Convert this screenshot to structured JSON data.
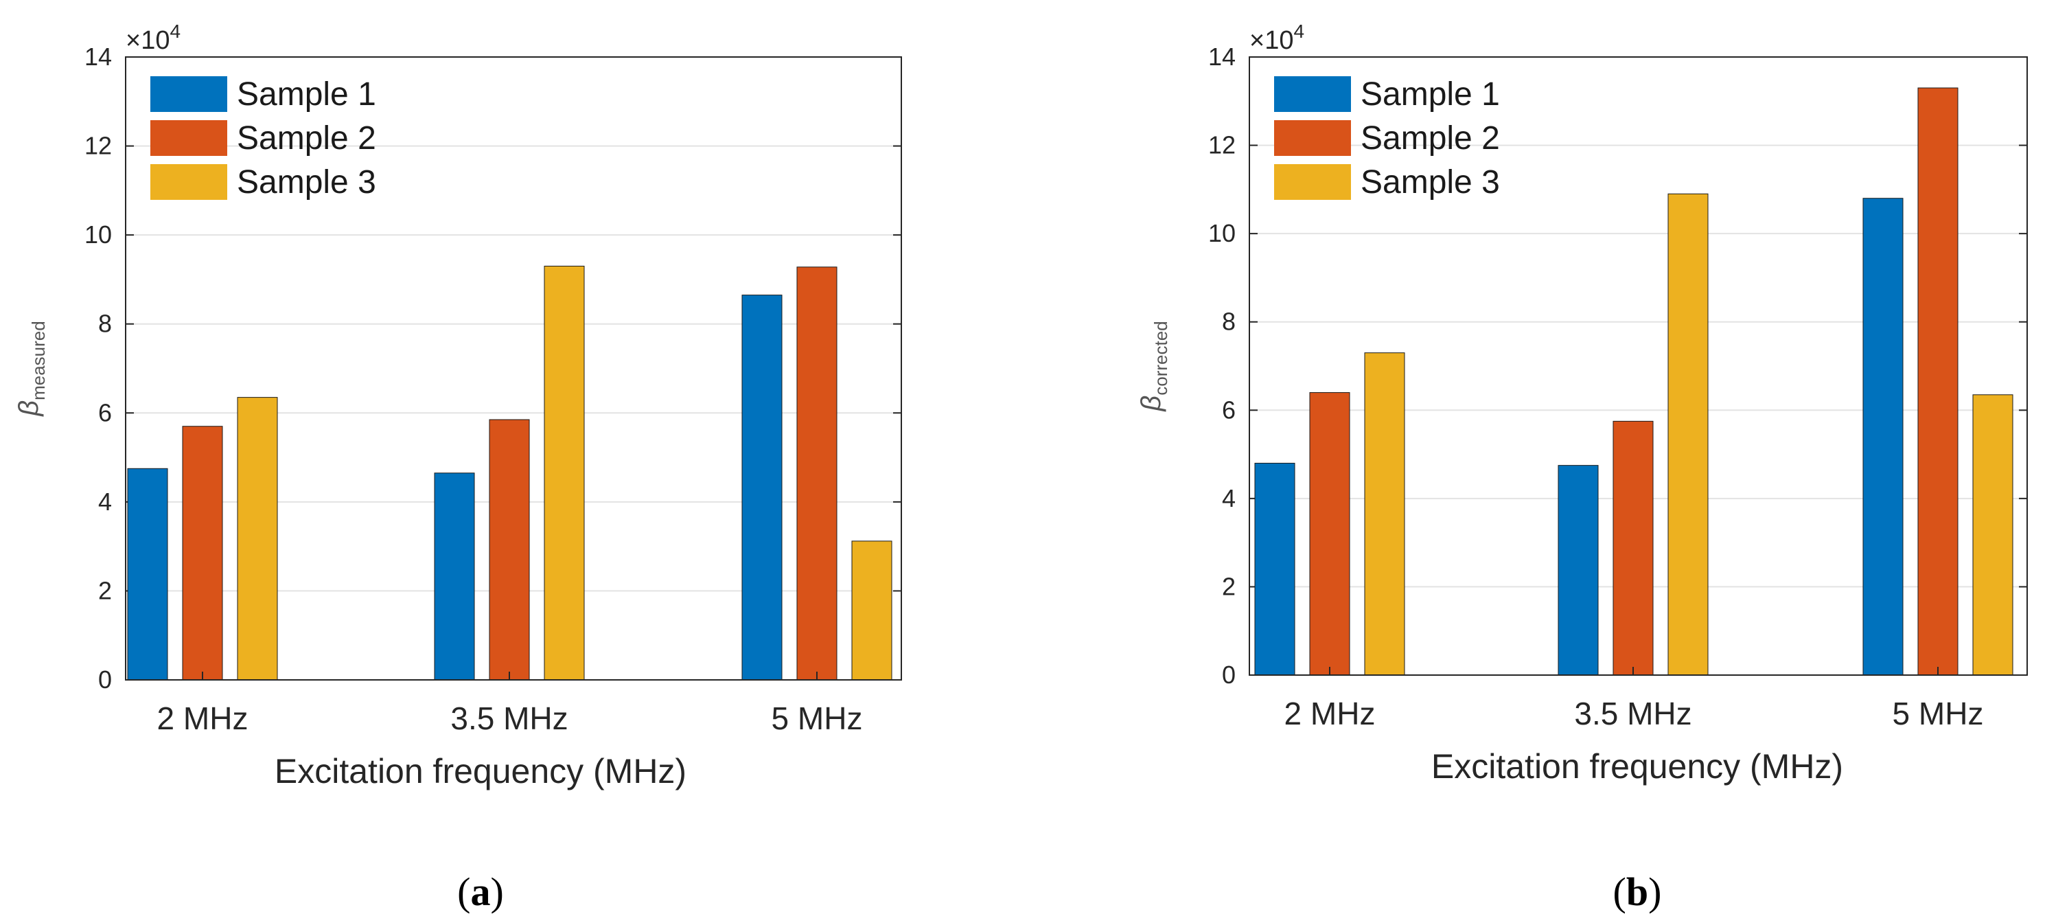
{
  "chart_data": [
    {
      "type": "bar",
      "panel_label_open": "(",
      "panel_label_letter": "a",
      "panel_label_close": ")",
      "categories": [
        "2 MHz",
        "3.5 MHz",
        "5 MHz"
      ],
      "series": [
        {
          "name": "Sample 1",
          "color": "#0072BD",
          "values": [
            4.75,
            4.65,
            8.65
          ]
        },
        {
          "name": "Sample 2",
          "color": "#D95319",
          "values": [
            5.7,
            5.85,
            9.28
          ]
        },
        {
          "name": "Sample 3",
          "color": "#EDB120",
          "values": [
            6.35,
            9.3,
            3.12
          ]
        }
      ],
      "xlabel": "Excitation frequency (MHz)",
      "ylabel_symbol": "β",
      "ylabel_sub": "measured",
      "exponent_prefix": "×10",
      "exponent_power": "4",
      "ylim": [
        0,
        14
      ],
      "yticks": [
        "0",
        "2",
        "4",
        "6",
        "8",
        "10",
        "12",
        "14"
      ],
      "grid": true,
      "legend_position": "top-left"
    },
    {
      "type": "bar",
      "panel_label_open": "(",
      "panel_label_letter": "b",
      "panel_label_close": ")",
      "categories": [
        "2 MHz",
        "3.5 MHz",
        "5 MHz"
      ],
      "series": [
        {
          "name": "Sample 1",
          "color": "#0072BD",
          "values": [
            4.8,
            4.75,
            10.8
          ]
        },
        {
          "name": "Sample 2",
          "color": "#D95319",
          "values": [
            6.4,
            5.75,
            13.3
          ]
        },
        {
          "name": "Sample 3",
          "color": "#EDB120",
          "values": [
            7.3,
            10.9,
            6.35
          ]
        }
      ],
      "xlabel": "Excitation frequency (MHz)",
      "ylabel_symbol": "β",
      "ylabel_sub": "corrected",
      "exponent_prefix": "×10",
      "exponent_power": "4",
      "ylim": [
        0,
        14
      ],
      "yticks": [
        "0",
        "2",
        "4",
        "6",
        "8",
        "10",
        "12",
        "14"
      ],
      "grid": true,
      "legend_position": "top-left"
    }
  ]
}
